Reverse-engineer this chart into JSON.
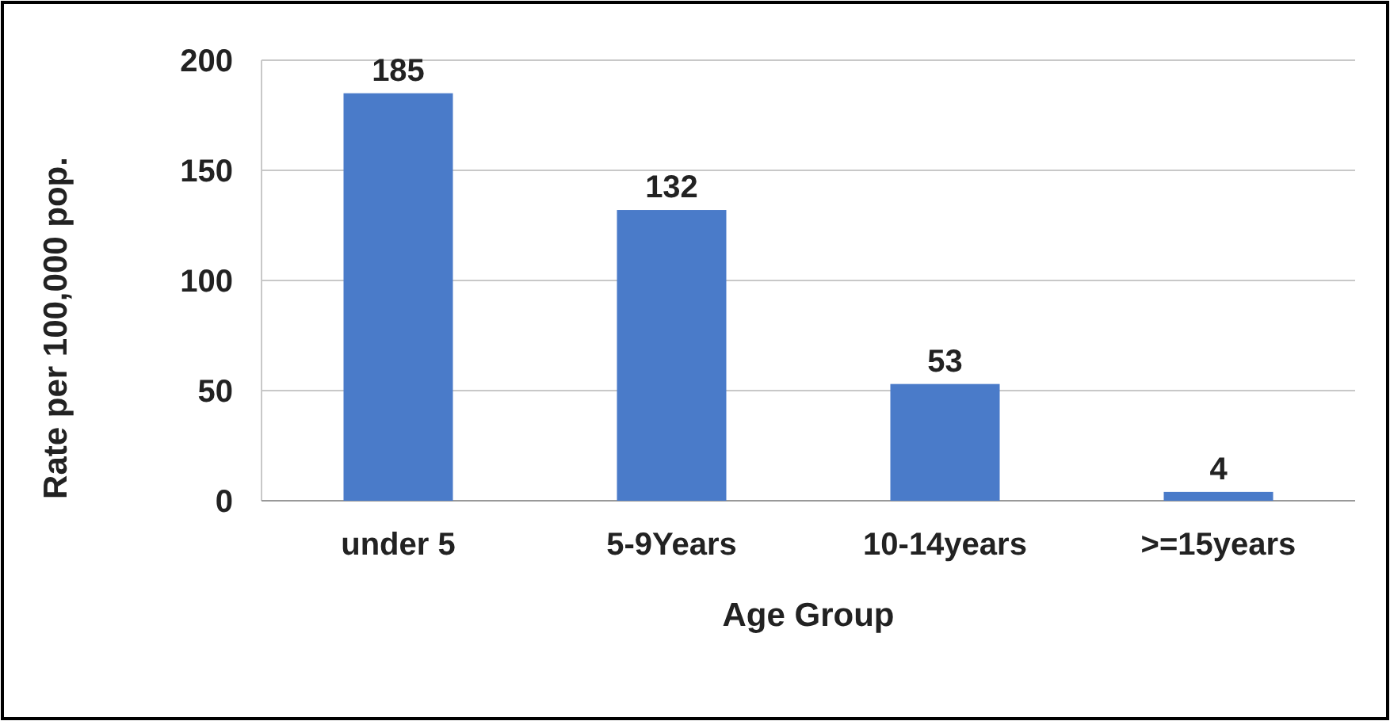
{
  "chart_data": {
    "type": "bar",
    "xlabel": "Age Group",
    "ylabel": "Rate per 100,000 pop.",
    "categories": [
      "under 5",
      "5-9Years",
      "10-14years",
      ">=15years"
    ],
    "values": [
      185,
      132,
      53,
      4
    ],
    "color": "#4a7bc9",
    "ylim": [
      0,
      200
    ],
    "yticks": [
      0,
      50,
      100,
      150,
      200
    ],
    "grid": "y",
    "data_labels": true
  }
}
